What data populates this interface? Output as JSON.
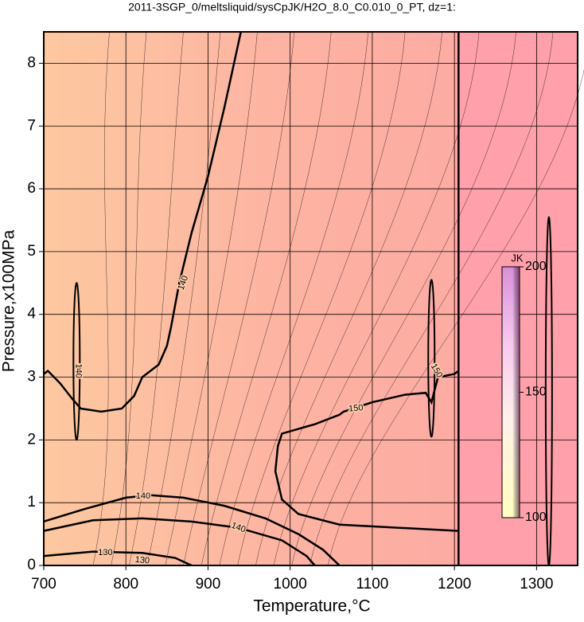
{
  "chart_data": {
    "type": "contour",
    "title": "2011-3SGP_0/meltsliquid/sysCpJK/H2O_8.0_C0.010_0_PT, dz=1:",
    "x_label": "Temperature,°C",
    "y_label": "Pressure,x100MPa",
    "xlim": [
      700,
      1350
    ],
    "xticks": [
      700,
      800,
      900,
      1000,
      1100,
      1200,
      1300
    ],
    "ylim": [
      0,
      8.5
    ],
    "yticks": [
      0,
      1,
      2,
      3,
      4,
      5,
      6,
      7,
      8
    ],
    "grid": true,
    "color": "#000000",
    "contours": [
      {
        "level": 140,
        "x": [
          700,
          705,
          720,
          735,
          745,
          770,
          795,
          810,
          820,
          840,
          850,
          855,
          865,
          880,
          900,
          920,
          940
        ],
        "y": [
          3.05,
          3.1,
          2.9,
          2.65,
          2.5,
          2.45,
          2.5,
          2.7,
          3.0,
          3.2,
          3.5,
          3.8,
          4.5,
          5.3,
          6.2,
          7.3,
          8.5
        ]
      },
      {
        "level": 140,
        "x": [
          700,
          750,
          800,
          830,
          870,
          920,
          970,
          1010,
          1040,
          1060
        ],
        "y": [
          0.7,
          0.9,
          1.08,
          1.12,
          1.08,
          0.95,
          0.75,
          0.5,
          0.25,
          0
        ]
      },
      {
        "level": 140,
        "x": [
          700,
          760,
          820,
          880,
          937,
          990,
          1020,
          1030
        ],
        "y": [
          0.55,
          0.72,
          0.75,
          0.7,
          0.6,
          0.4,
          0.15,
          0
        ]
      },
      {
        "level": 130,
        "x": [
          700,
          760,
          820,
          860,
          880
        ],
        "y": [
          0.15,
          0.22,
          0.2,
          0.12,
          0
        ]
      },
      {
        "level": 150,
        "x": [
          1205,
          1060,
          1010,
          990,
          982,
          985,
          990,
          1030,
          1060,
          1065,
          1100,
          1140,
          1165,
          1172,
          1180,
          1200,
          1205
        ],
        "y": [
          0.55,
          0.65,
          0.82,
          1.05,
          1.5,
          1.9,
          2.1,
          2.25,
          2.4,
          2.45,
          2.6,
          2.72,
          2.75,
          2.6,
          3.0,
          3.05,
          3.1
        ]
      }
    ],
    "colorbar": {
      "label": "JK",
      "lim": [
        100,
        200
      ],
      "ticks": [
        100,
        150,
        200
      ]
    }
  }
}
